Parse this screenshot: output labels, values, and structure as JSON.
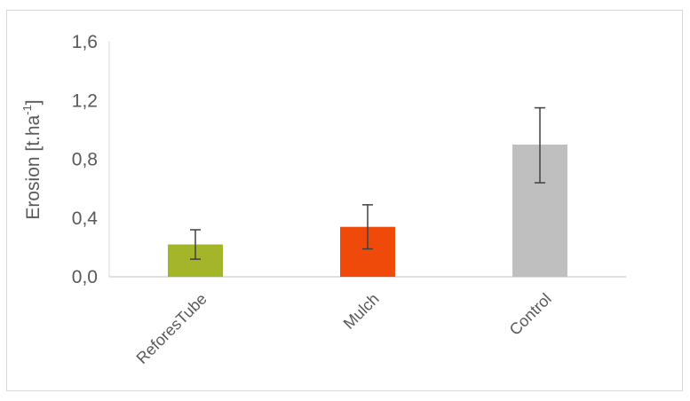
{
  "chart_data": {
    "type": "bar",
    "title": "",
    "xlabel": "",
    "ylabel": "Erosion [t.ha-1]",
    "ylabel_parts": {
      "base": "Erosion [t.ha",
      "superscript": "-1",
      "suffix": "]"
    },
    "ylim": [
      0,
      1.6
    ],
    "yticks": [
      "0,0",
      "0,4",
      "0,8",
      "1,2",
      "1,6"
    ],
    "grid": false,
    "legend": "none",
    "categories": [
      "ReforesTube",
      "Mulch",
      "Control"
    ],
    "values": [
      0.22,
      0.34,
      0.9
    ],
    "error_bars": [
      {
        "low": 0.12,
        "high": 0.32
      },
      {
        "low": 0.19,
        "high": 0.49
      },
      {
        "low": 0.64,
        "high": 1.15
      }
    ],
    "colors": [
      "#a4b52a",
      "#f04a0a",
      "#bfbfbf"
    ]
  }
}
